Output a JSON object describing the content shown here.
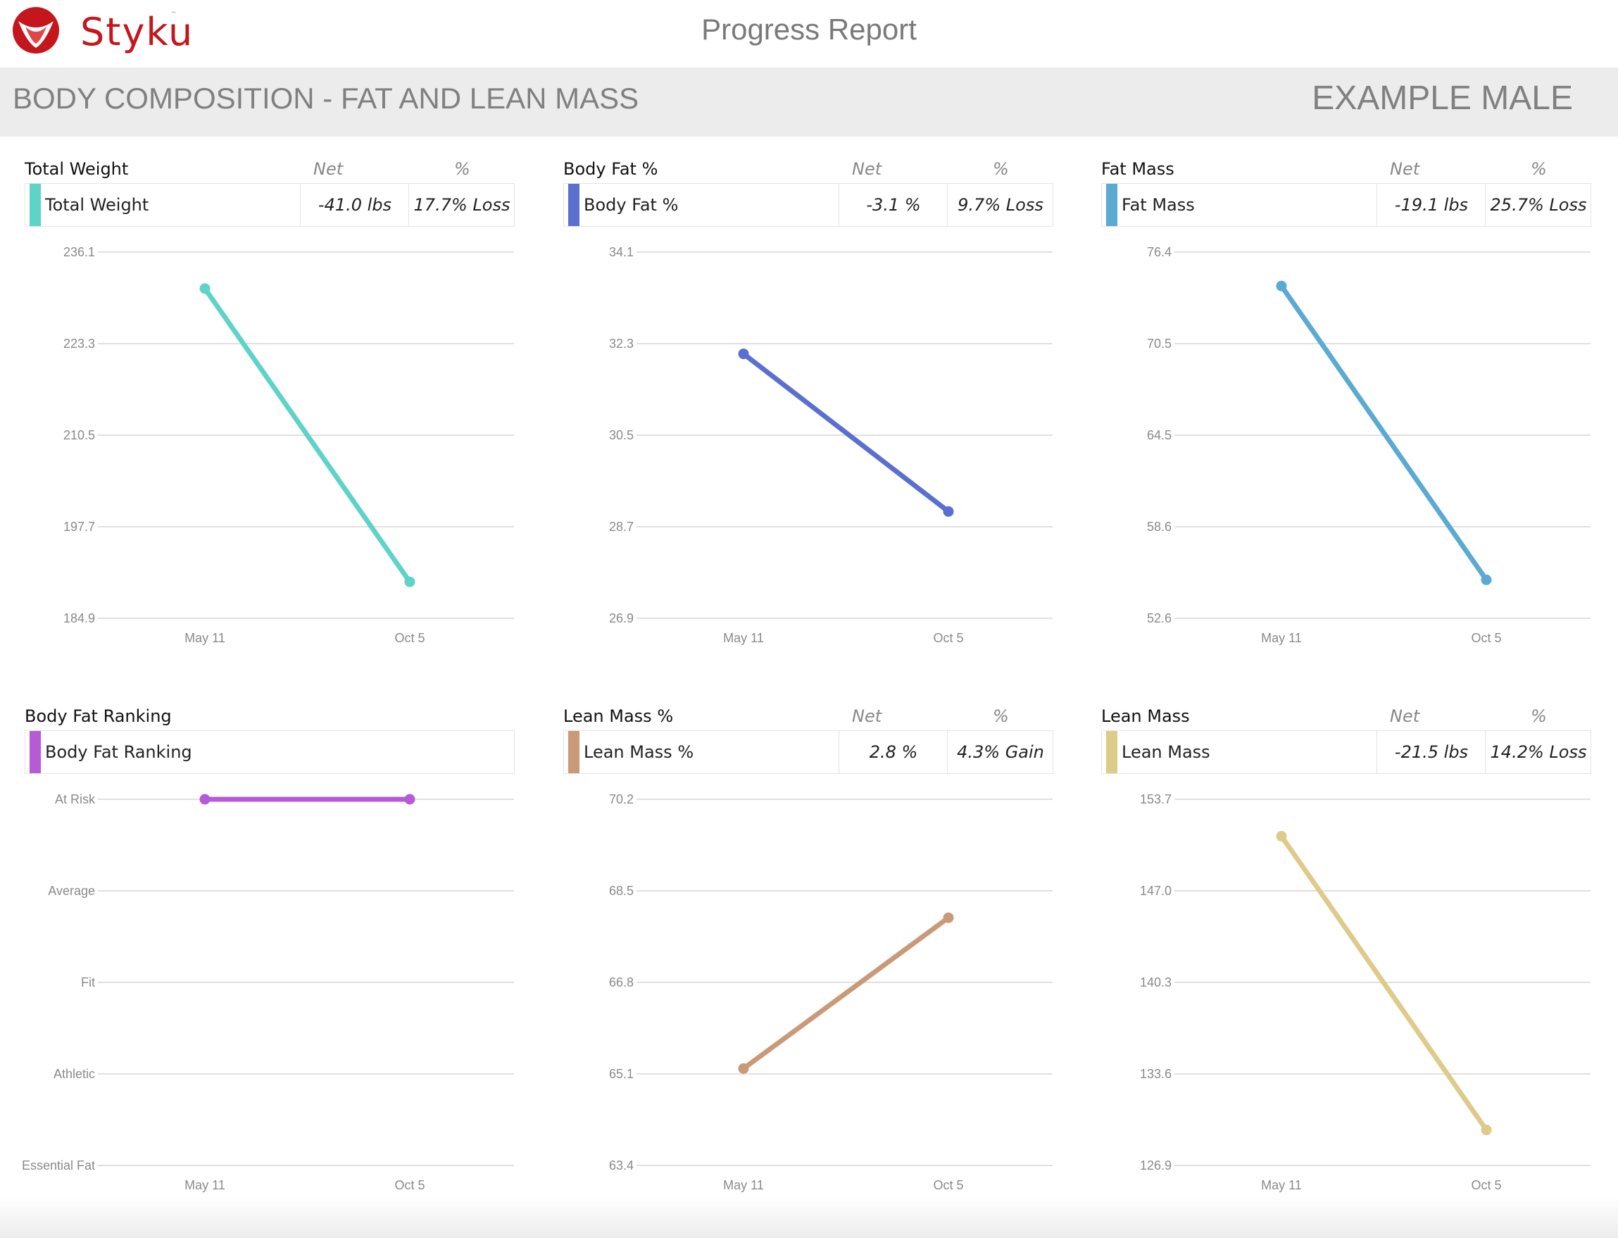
{
  "header": {
    "logo_text": "Styku",
    "logo_tm": "™",
    "title": "Progress Report"
  },
  "section": {
    "title": "BODY COMPOSITION - FAT AND LEAN MASS",
    "subject": "EXAMPLE MALE"
  },
  "column_labels": {
    "net": "Net",
    "pct": "%"
  },
  "chart_data": [
    {
      "type": "line",
      "title": "Total Weight",
      "series_name": "Total Weight",
      "net": "-41.0 lbs",
      "pct": "17.7% Loss",
      "color": "#5fd3c7",
      "x": [
        "May 11",
        "Oct 5"
      ],
      "values": [
        231.0,
        190.0
      ],
      "ylim": [
        184.9,
        236.1
      ],
      "yticks": [
        "236.1",
        "223.3",
        "210.5",
        "197.7",
        "184.9"
      ],
      "grid": true
    },
    {
      "type": "line",
      "title": "Body Fat %",
      "series_name": "Body Fat %",
      "net": "-3.1 %",
      "pct": "9.7% Loss",
      "color": "#5b6fd0",
      "x": [
        "May 11",
        "Oct 5"
      ],
      "values": [
        32.1,
        29.0
      ],
      "ylim": [
        26.9,
        34.1
      ],
      "yticks": [
        "34.1",
        "32.3",
        "30.5",
        "28.7",
        "26.9"
      ],
      "grid": true
    },
    {
      "type": "line",
      "title": "Fat Mass",
      "series_name": "Fat Mass",
      "net": "-19.1 lbs",
      "pct": "25.7% Loss",
      "color": "#5aaad2",
      "x": [
        "May 11",
        "Oct 5"
      ],
      "values": [
        74.2,
        55.1
      ],
      "ylim": [
        52.6,
        76.4
      ],
      "yticks": [
        "76.4",
        "70.5",
        "64.5",
        "58.6",
        "52.6"
      ],
      "grid": true
    },
    {
      "type": "line",
      "title": "Body Fat Ranking",
      "series_name": "Body Fat Ranking",
      "net": "",
      "pct": "",
      "color": "#b65bd6",
      "x": [
        "May 11",
        "Oct 5"
      ],
      "values": [
        4,
        4
      ],
      "ylim": [
        0,
        4
      ],
      "yticks": [
        "At Risk",
        "Average",
        "Fit",
        "Athletic",
        "Essential Fat"
      ],
      "grid": true
    },
    {
      "type": "line",
      "title": "Lean Mass %",
      "series_name": "Lean Mass %",
      "net": "2.8 %",
      "pct": "4.3% Gain",
      "color": "#c99a78",
      "x": [
        "May 11",
        "Oct 5"
      ],
      "values": [
        65.2,
        68.0
      ],
      "ylim": [
        63.4,
        70.2
      ],
      "yticks": [
        "70.2",
        "68.5",
        "66.8",
        "65.1",
        "63.4"
      ],
      "grid": true
    },
    {
      "type": "line",
      "title": "Lean Mass",
      "series_name": "Lean Mass",
      "net": "-21.5 lbs",
      "pct": "14.2% Loss",
      "color": "#ddcb8a",
      "x": [
        "May 11",
        "Oct 5"
      ],
      "values": [
        151.0,
        129.5
      ],
      "ylim": [
        126.9,
        153.7
      ],
      "yticks": [
        "153.7",
        "147.0",
        "140.3",
        "133.6",
        "126.9"
      ],
      "grid": true
    }
  ]
}
